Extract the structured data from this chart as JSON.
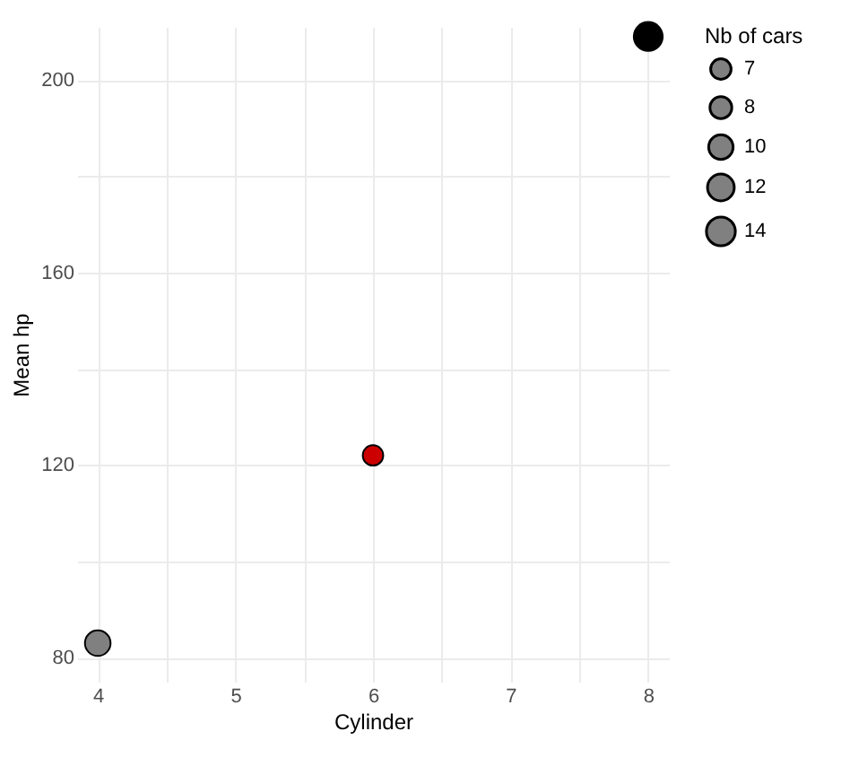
{
  "chart_data": {
    "type": "bubble",
    "xlabel": "Cylinder",
    "ylabel": "Mean hp",
    "legend_title": "Nb of cars",
    "x": [
      4,
      6,
      8
    ],
    "values": [
      83,
      122,
      209
    ],
    "sizes": [
      11,
      7,
      14
    ],
    "colors": [
      "#808080",
      "#cc0000",
      "#000000"
    ],
    "size_legend": [
      7,
      8,
      10,
      12,
      14
    ],
    "xlim": [
      3.85,
      8.15
    ],
    "xticks": [
      4,
      {
        "value": 4.5,
        "label": null
      },
      5,
      {
        "value": 5.5,
        "label": null
      },
      6,
      {
        "value": 6.5,
        "label": null
      },
      7,
      {
        "value": 7.5,
        "label": null
      },
      8
    ],
    "ylim": [
      75,
      211
    ],
    "yticks": [
      80,
      {
        "value": 100,
        "label": null
      },
      120,
      {
        "value": 140,
        "label": null
      },
      160,
      {
        "value": 180,
        "label": null
      },
      200
    ],
    "grid": true
  }
}
